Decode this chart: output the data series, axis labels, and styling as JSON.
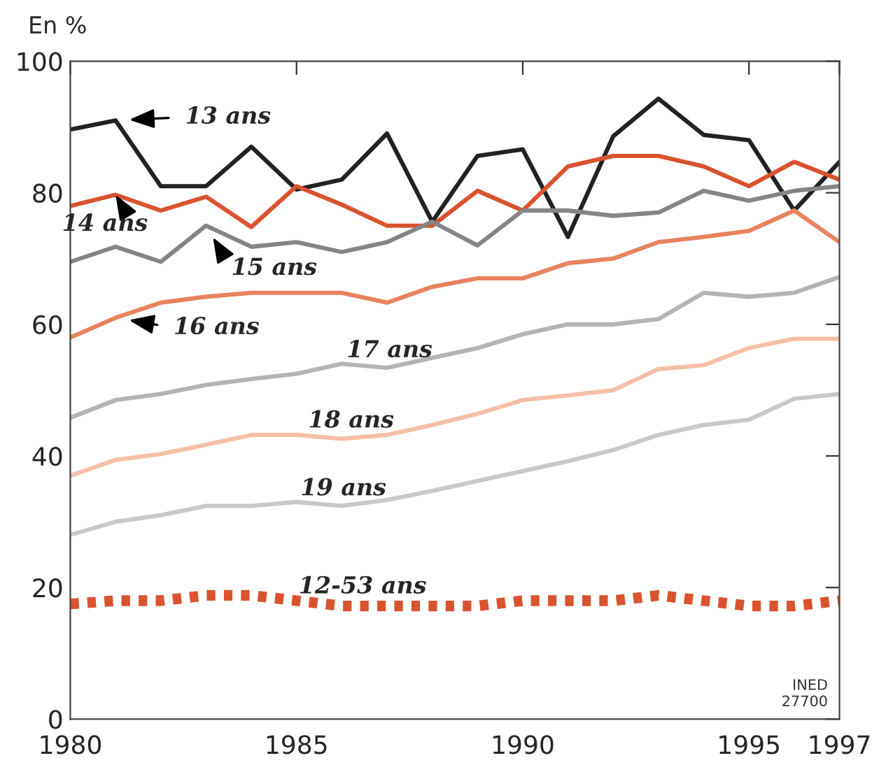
{
  "chart_data": {
    "type": "line",
    "ylabel": "En %",
    "x": [
      1980,
      1981,
      1982,
      1983,
      1984,
      1985,
      1986,
      1987,
      1988,
      1989,
      1990,
      1991,
      1992,
      1993,
      1994,
      1995,
      1996,
      1997
    ],
    "series": [
      {
        "name": "13 ans",
        "color": "#222222",
        "values": [
          89.6,
          91,
          81,
          81,
          87,
          80.5,
          82,
          89,
          75.6,
          85.6,
          86.6,
          73.3,
          88.6,
          94.3,
          88.8,
          88,
          77.3,
          84.7
        ]
      },
      {
        "name": "14 ans",
        "color": "#d9532f",
        "values": [
          78,
          79.7,
          77.3,
          79.4,
          74.8,
          81,
          78.2,
          75,
          75,
          80.3,
          77.3,
          84,
          85.6,
          85.6,
          84,
          81,
          84.7,
          82
        ]
      },
      {
        "name": "15 ans",
        "color": "#858585",
        "values": [
          69.5,
          71.8,
          69.5,
          75,
          71.8,
          72.5,
          71,
          72.5,
          75.6,
          72,
          77.3,
          77.3,
          76.5,
          77,
          80.3,
          78.8,
          80.3,
          81
        ]
      },
      {
        "name": "16 ans",
        "color": "#e8825f",
        "values": [
          58,
          61,
          63.3,
          64.2,
          64.8,
          64.8,
          64.8,
          63.3,
          65.7,
          67,
          67,
          69.3,
          70,
          72.5,
          73.3,
          74.2,
          77.3,
          72.5
        ]
      },
      {
        "name": "17 ans",
        "color": "#b3b3b8",
        "values": [
          45.8,
          48.5,
          49.4,
          50.8,
          51.7,
          52.5,
          54,
          53.4,
          54.9,
          56.4,
          58.5,
          60,
          60,
          60.8,
          64.8,
          64.2,
          64.8,
          67.2
        ]
      },
      {
        "name": "18 ans",
        "color": "#f5bfa8",
        "values": [
          37,
          39.4,
          40.3,
          41.7,
          43.2,
          43.2,
          42.6,
          43.2,
          44.7,
          46.4,
          48.5,
          49.2,
          50,
          53.2,
          53.8,
          56.4,
          57.8,
          57.8
        ]
      },
      {
        "name": "19 ans",
        "color": "#c8c8c8",
        "values": [
          28,
          30,
          31,
          32.4,
          32.4,
          33,
          32.4,
          33.3,
          34.7,
          36.2,
          37.7,
          39.2,
          40.9,
          43.2,
          44.7,
          45.5,
          48.7,
          49.4
        ]
      },
      {
        "name": "12-53 ans",
        "color": "#d9532f",
        "line_style": "dotted",
        "values": [
          17.5,
          18,
          18,
          18.8,
          18.8,
          18,
          17.2,
          17.2,
          17.2,
          17.2,
          18,
          18,
          18,
          18.8,
          18,
          17.2,
          17.2,
          18
        ]
      }
    ],
    "annotations": [
      "INED\n27700"
    ],
    "xlim": [
      1980,
      1997
    ],
    "xticks": [
      1980,
      1985,
      1990,
      1995,
      1997
    ],
    "ylim": [
      0,
      100
    ],
    "yticks": [
      0,
      20,
      40,
      60,
      80,
      100
    ],
    "grid": false
  }
}
